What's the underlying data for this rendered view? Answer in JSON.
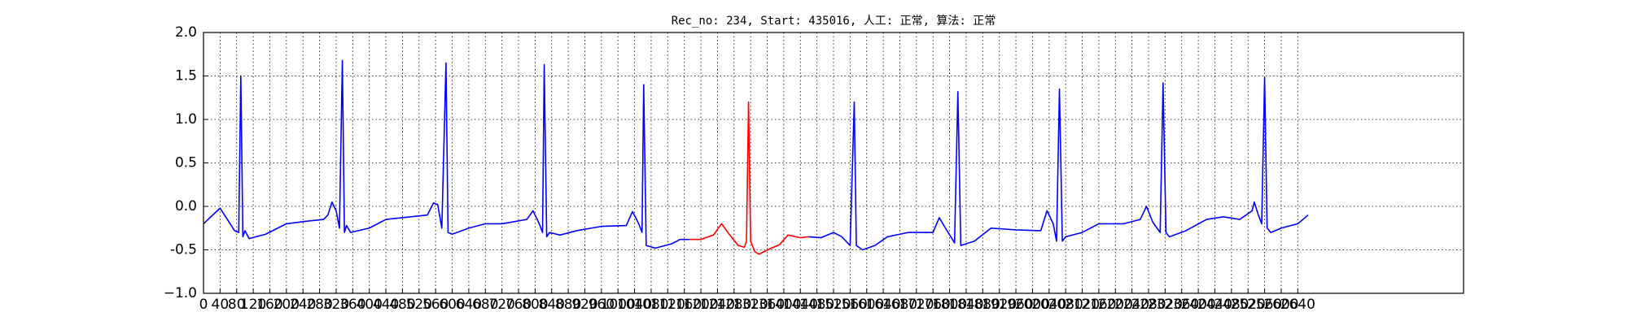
{
  "chart_data": {
    "type": "line",
    "title": "Rec_no: 234, Start: 435016, 人工: 正常, 算法: 正常",
    "x": [
      0,
      40,
      75,
      85,
      90,
      95,
      100,
      110,
      150,
      200,
      250,
      290,
      300,
      310,
      320,
      328,
      335,
      340,
      345,
      355,
      400,
      440,
      500,
      540,
      555,
      565,
      575,
      585,
      590,
      600,
      640,
      680,
      720,
      780,
      795,
      810,
      818,
      822,
      828,
      835,
      860,
      900,
      960,
      1020,
      1035,
      1050,
      1058,
      1062,
      1068,
      1090,
      1130,
      1150,
      1172,
      1200,
      1230,
      1250,
      1265,
      1290,
      1305,
      1310,
      1315,
      1320,
      1330,
      1340,
      1370,
      1390,
      1410,
      1440,
      1460,
      1490,
      1520,
      1540,
      1560,
      1570,
      1575,
      1590,
      1620,
      1650,
      1700,
      1760,
      1775,
      1790,
      1812,
      1820,
      1827,
      1860,
      1900,
      1960,
      2020,
      2035,
      2050,
      2058,
      2065,
      2072,
      2080,
      2120,
      2160,
      2220,
      2260,
      2275,
      2290,
      2308,
      2315,
      2322,
      2330,
      2370,
      2420,
      2460,
      2500,
      2530,
      2535,
      2545,
      2553,
      2560,
      2566,
      2575,
      2600,
      2640,
      2665
    ],
    "series": [
      {
        "color": "#0000ff",
        "values": [
          -0.2,
          -0.02,
          -0.28,
          -0.3,
          1.5,
          -0.35,
          -0.28,
          -0.37,
          -0.32,
          -0.2,
          -0.17,
          -0.15,
          -0.1,
          0.05,
          -0.05,
          -0.25,
          1.68,
          -0.3,
          -0.22,
          -0.3,
          -0.25,
          -0.15,
          -0.12,
          -0.1,
          0.04,
          0.02,
          -0.25,
          1.65,
          -0.3,
          -0.32,
          -0.25,
          -0.2,
          -0.2,
          -0.15,
          -0.05,
          -0.2,
          -0.3,
          1.63,
          -0.35,
          -0.3,
          -0.33,
          -0.28,
          -0.23,
          -0.22,
          -0.06,
          -0.2,
          -0.3,
          1.4,
          -0.45,
          -0.48,
          -0.43,
          -0.38,
          -0.38,
          null,
          null,
          null,
          null,
          null,
          null,
          null,
          null,
          null,
          null,
          null,
          null,
          null,
          null,
          null,
          -0.35,
          -0.36,
          -0.3,
          -0.35,
          -0.45,
          1.2,
          -0.45,
          -0.5,
          -0.45,
          -0.35,
          -0.3,
          -0.3,
          -0.13,
          -0.25,
          -0.42,
          1.32,
          -0.45,
          -0.4,
          -0.25,
          -0.27,
          -0.28,
          -0.05,
          -0.2,
          -0.4,
          1.35,
          -0.4,
          -0.35,
          -0.3,
          -0.2,
          -0.2,
          -0.15,
          0.0,
          -0.18,
          -0.3,
          1.42,
          -0.3,
          -0.35,
          -0.28,
          -0.15,
          -0.12,
          -0.15,
          -0.05,
          0.05,
          -0.1,
          -0.2,
          1.48,
          -0.25,
          -0.3,
          -0.25,
          -0.2,
          -0.1
        ]
      },
      {
        "color": "#ff0000",
        "values": [
          null,
          null,
          null,
          null,
          null,
          null,
          null,
          null,
          null,
          null,
          null,
          null,
          null,
          null,
          null,
          null,
          null,
          null,
          null,
          null,
          null,
          null,
          null,
          null,
          null,
          null,
          null,
          null,
          null,
          null,
          null,
          null,
          null,
          null,
          null,
          null,
          null,
          null,
          null,
          null,
          null,
          null,
          null,
          null,
          null,
          null,
          null,
          null,
          null,
          null,
          null,
          null,
          -0.38,
          -0.38,
          -0.33,
          -0.2,
          -0.3,
          -0.45,
          -0.47,
          -0.4,
          1.2,
          -0.4,
          -0.52,
          -0.55,
          -0.48,
          -0.44,
          -0.33,
          -0.36,
          -0.35,
          null,
          null,
          null,
          null,
          null,
          null,
          null,
          null,
          null,
          null,
          null,
          null,
          null,
          null,
          null,
          null,
          null,
          null,
          null,
          null,
          null,
          null,
          null,
          null,
          null,
          null,
          null,
          null,
          null,
          null,
          null,
          null,
          null,
          null,
          null,
          null,
          null,
          null,
          null,
          null,
          null,
          null,
          null,
          null,
          null,
          null,
          null,
          null,
          null,
          null
        ]
      }
    ],
    "xlim": [
      0,
      3040
    ],
    "ylim": [
      -1.0,
      2.0
    ],
    "xticks": [
      0,
      40,
      80,
      120,
      160,
      200,
      240,
      280,
      320,
      360,
      400,
      440,
      480,
      520,
      560,
      600,
      640,
      680,
      720,
      760,
      800,
      840,
      880,
      920,
      960,
      1000,
      1040,
      1080,
      1120,
      1160,
      1200,
      1240,
      1280,
      1320,
      1360,
      1400,
      1440,
      1480,
      1520,
      1560,
      1600,
      1640,
      1680,
      1720,
      1760,
      1800,
      1840,
      1880,
      1920,
      1960,
      2000,
      2040,
      2080,
      2120,
      2160,
      2200,
      2240,
      2280,
      2320,
      2360,
      2400,
      2440,
      2480,
      2520,
      2560,
      2600,
      2640
    ],
    "yticks": [
      {
        "value": -1.0,
        "label": "−1.0"
      },
      -0.5,
      {
        "value": 0.0,
        "label": "0.0"
      },
      0.5,
      {
        "value": 1.0,
        "label": "1.0"
      },
      1.5,
      {
        "value": 2.0,
        "label": "2.0"
      }
    ],
    "grid": true
  }
}
